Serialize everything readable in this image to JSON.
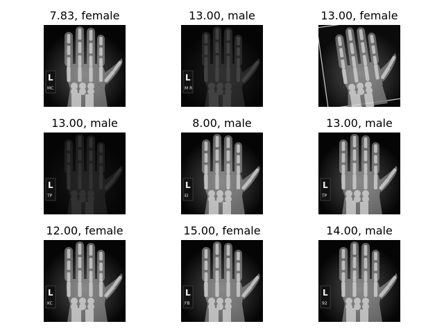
{
  "figure": {
    "panels": [
      {
        "title": "7.83, female",
        "hand_side": "L",
        "tag": "MC",
        "brightness": "bright",
        "rotated": false
      },
      {
        "title": "13.00, male",
        "hand_side": "L",
        "tag": "M R",
        "brightness": "dim",
        "rotated": false
      },
      {
        "title": "13.00, female",
        "hand_side": "",
        "tag": "",
        "brightness": "bright",
        "rotated": true
      },
      {
        "title": "13.00, male",
        "hand_side": "L",
        "tag": "TP",
        "brightness": "very dim",
        "rotated": false
      },
      {
        "title": "8.00, male",
        "hand_side": "L",
        "tag": "EI",
        "brightness": "bright",
        "rotated": false
      },
      {
        "title": "13.00, male",
        "hand_side": "L",
        "tag": "TP",
        "brightness": "bright",
        "rotated": false
      },
      {
        "title": "12.00, female",
        "hand_side": "L",
        "tag": "KC",
        "brightness": "bright",
        "rotated": false
      },
      {
        "title": "15.00, female",
        "hand_side": "L",
        "tag": "FB",
        "brightness": "bright",
        "rotated": false
      },
      {
        "title": "14.00, male",
        "hand_side": "L",
        "tag": "92",
        "brightness": "bright",
        "rotated": false
      }
    ]
  }
}
